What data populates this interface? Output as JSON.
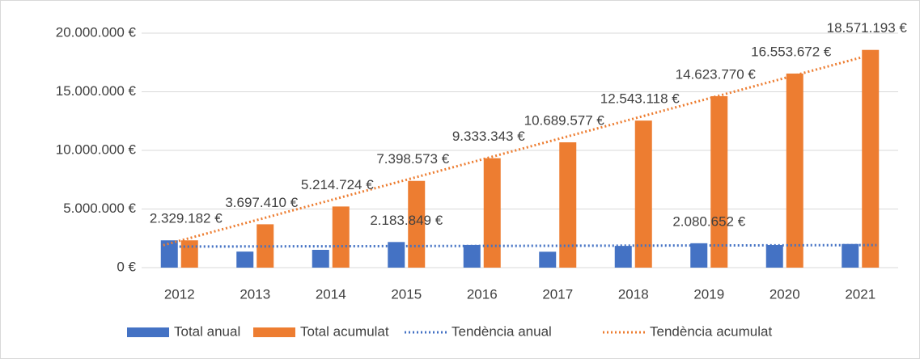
{
  "chart_data": {
    "type": "bar",
    "categories": [
      "2012",
      "2013",
      "2014",
      "2015",
      "2016",
      "2017",
      "2018",
      "2019",
      "2020",
      "2021"
    ],
    "series": [
      {
        "name": "Total anual",
        "color": "#4472c4",
        "values": [
          2329182,
          1368228,
          1517314,
          2183849,
          1934770,
          1356234,
          1853541,
          2080652,
          1929902,
          2017521
        ],
        "value_labels": [
          null,
          null,
          null,
          "2.183.849 €",
          null,
          null,
          null,
          "2.080.652 €",
          null,
          null
        ]
      },
      {
        "name": "Total acumulat",
        "color": "#ed7d31",
        "values": [
          2329182,
          3697410,
          5214724,
          7398573,
          9333343,
          10689577,
          12543118,
          14623770,
          16553672,
          18571193
        ],
        "value_labels": [
          "2.329.182 €",
          "3.697.410 €",
          "5.214.724 €",
          "7.398.573 €",
          "9.333.343 €",
          "10.689.577 €",
          "12.543.118 €",
          "14.623.770 €",
          "16.553.672 €",
          "18.571.193 €"
        ]
      },
      {
        "name": "Tendència anual",
        "color": "#4472c4",
        "trendline": "linear",
        "trend_of": 0
      },
      {
        "name": "Tendència acumulat",
        "color": "#ed7d31",
        "trendline": "linear",
        "trend_of": 1
      }
    ],
    "ylim": [
      0,
      20000000
    ],
    "yticks": [
      {
        "value": 0,
        "label": "0 €"
      },
      {
        "value": 5000000,
        "label": "5.000.000 €"
      },
      {
        "value": 10000000,
        "label": "10.000.000 €"
      },
      {
        "value": 15000000,
        "label": "15.000.000 €"
      },
      {
        "value": 20000000,
        "label": "20.000.000 €"
      }
    ],
    "grid": true,
    "legend": "bottom"
  }
}
